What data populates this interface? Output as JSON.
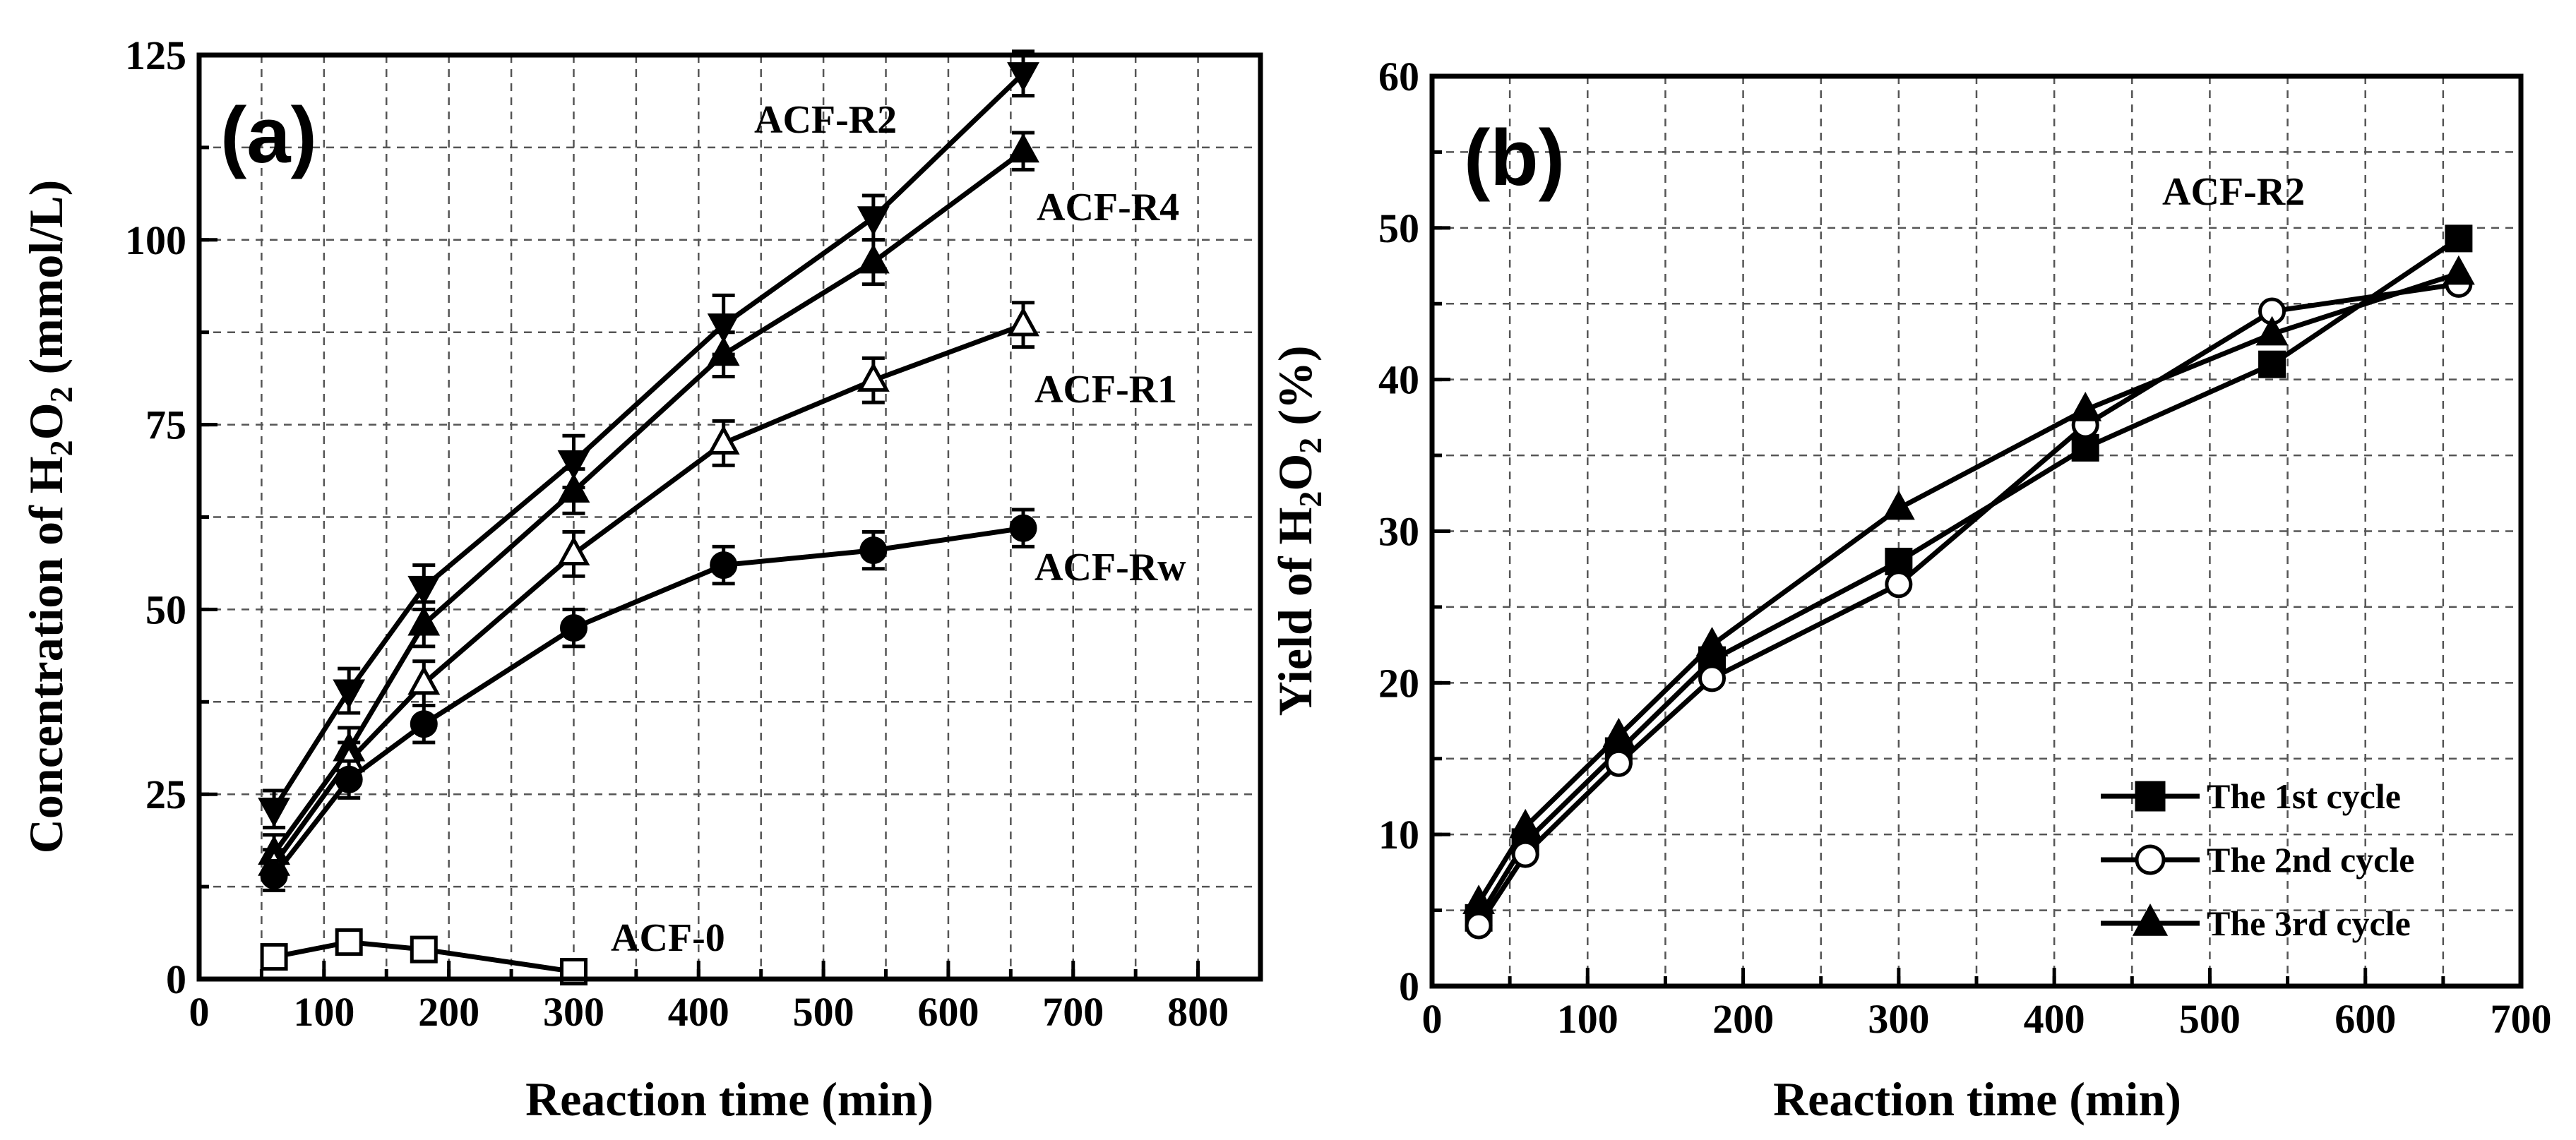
{
  "chart_data": [
    {
      "type": "line",
      "panel_label": "(a)",
      "xlabel": "Reaction time (min)",
      "ylabel": {
        "prefix": "Concentration of H",
        "sub1": "2",
        "mid": "O",
        "sub2": "2",
        "suffix": " (mmol/L)"
      },
      "xlim": [
        0,
        850
      ],
      "ylim": [
        0,
        125
      ],
      "xticks": [
        0,
        100,
        200,
        300,
        400,
        500,
        600,
        700,
        800
      ],
      "yticks": [
        0,
        25,
        50,
        75,
        100,
        125
      ],
      "grid": true,
      "series": [
        {
          "name": "ACF-R2",
          "marker": "triangle-down",
          "filled": true,
          "x": [
            60,
            120,
            180,
            300,
            420,
            540,
            660
          ],
          "y": [
            23,
            39,
            53,
            70,
            88.5,
            103,
            122.5
          ],
          "err": [
            2.5,
            3,
            3,
            3.5,
            4,
            3,
            3
          ]
        },
        {
          "name": "ACF-R4",
          "marker": "triangle-up",
          "filled": true,
          "x": [
            60,
            120,
            180,
            300,
            420,
            540,
            660
          ],
          "y": [
            17,
            31,
            48,
            66,
            84.5,
            97,
            112
          ],
          "err": [
            2.5,
            3,
            3,
            3,
            3,
            3,
            2.5
          ]
        },
        {
          "name": "ACF-R1",
          "marker": "triangle-up",
          "filled": false,
          "x": [
            60,
            120,
            180,
            300,
            420,
            540,
            660
          ],
          "y": [
            15.5,
            29.5,
            40,
            57.5,
            72.5,
            81,
            88.5
          ],
          "err": [
            2,
            2.5,
            3,
            3,
            3,
            3,
            3
          ]
        },
        {
          "name": "ACF-Rw",
          "marker": "circle",
          "filled": true,
          "x": [
            60,
            120,
            180,
            300,
            420,
            540,
            660
          ],
          "y": [
            14,
            27,
            34.5,
            47.5,
            56,
            58,
            61
          ],
          "err": [
            2,
            2.5,
            2.5,
            2.5,
            2.5,
            2.5,
            2.5
          ]
        },
        {
          "name": "ACF-0",
          "marker": "square",
          "filled": false,
          "x": [
            60,
            120,
            180,
            300
          ],
          "y": [
            3,
            5,
            4,
            1
          ],
          "err": [
            1.2,
            1.2,
            1.2,
            0.8
          ]
        }
      ]
    },
    {
      "type": "line",
      "panel_label": "(b)",
      "annotation": "ACF-R2",
      "xlabel": "Reaction time (min)",
      "ylabel": {
        "prefix": "Yield of H",
        "sub1": "2",
        "mid": "O",
        "sub2": "2",
        "suffix": " (%)"
      },
      "xlim": [
        0,
        700
      ],
      "ylim": [
        0,
        60
      ],
      "xticks": [
        0,
        100,
        200,
        300,
        400,
        500,
        600,
        700
      ],
      "yticks": [
        0,
        10,
        20,
        30,
        40,
        50,
        60
      ],
      "grid": true,
      "legend_position": "bottom-right",
      "series": [
        {
          "name": "The 1st cycle",
          "marker": "square",
          "filled": true,
          "x": [
            30,
            60,
            120,
            180,
            300,
            420,
            540,
            660
          ],
          "y": [
            4.5,
            9.5,
            15.5,
            21.5,
            28,
            35.5,
            41,
            49.3
          ]
        },
        {
          "name": "The 2nd cycle",
          "marker": "circle",
          "filled": false,
          "x": [
            30,
            60,
            120,
            180,
            300,
            420,
            540,
            660
          ],
          "y": [
            4,
            8.7,
            14.7,
            20.3,
            26.5,
            37,
            44.5,
            46.3
          ]
        },
        {
          "name": "The 3rd cycle",
          "marker": "triangle-up",
          "filled": true,
          "x": [
            30,
            60,
            120,
            180,
            300,
            420,
            540,
            660
          ],
          "y": [
            5.5,
            10.5,
            16.5,
            22.5,
            31.5,
            38,
            43,
            47
          ]
        }
      ]
    }
  ]
}
